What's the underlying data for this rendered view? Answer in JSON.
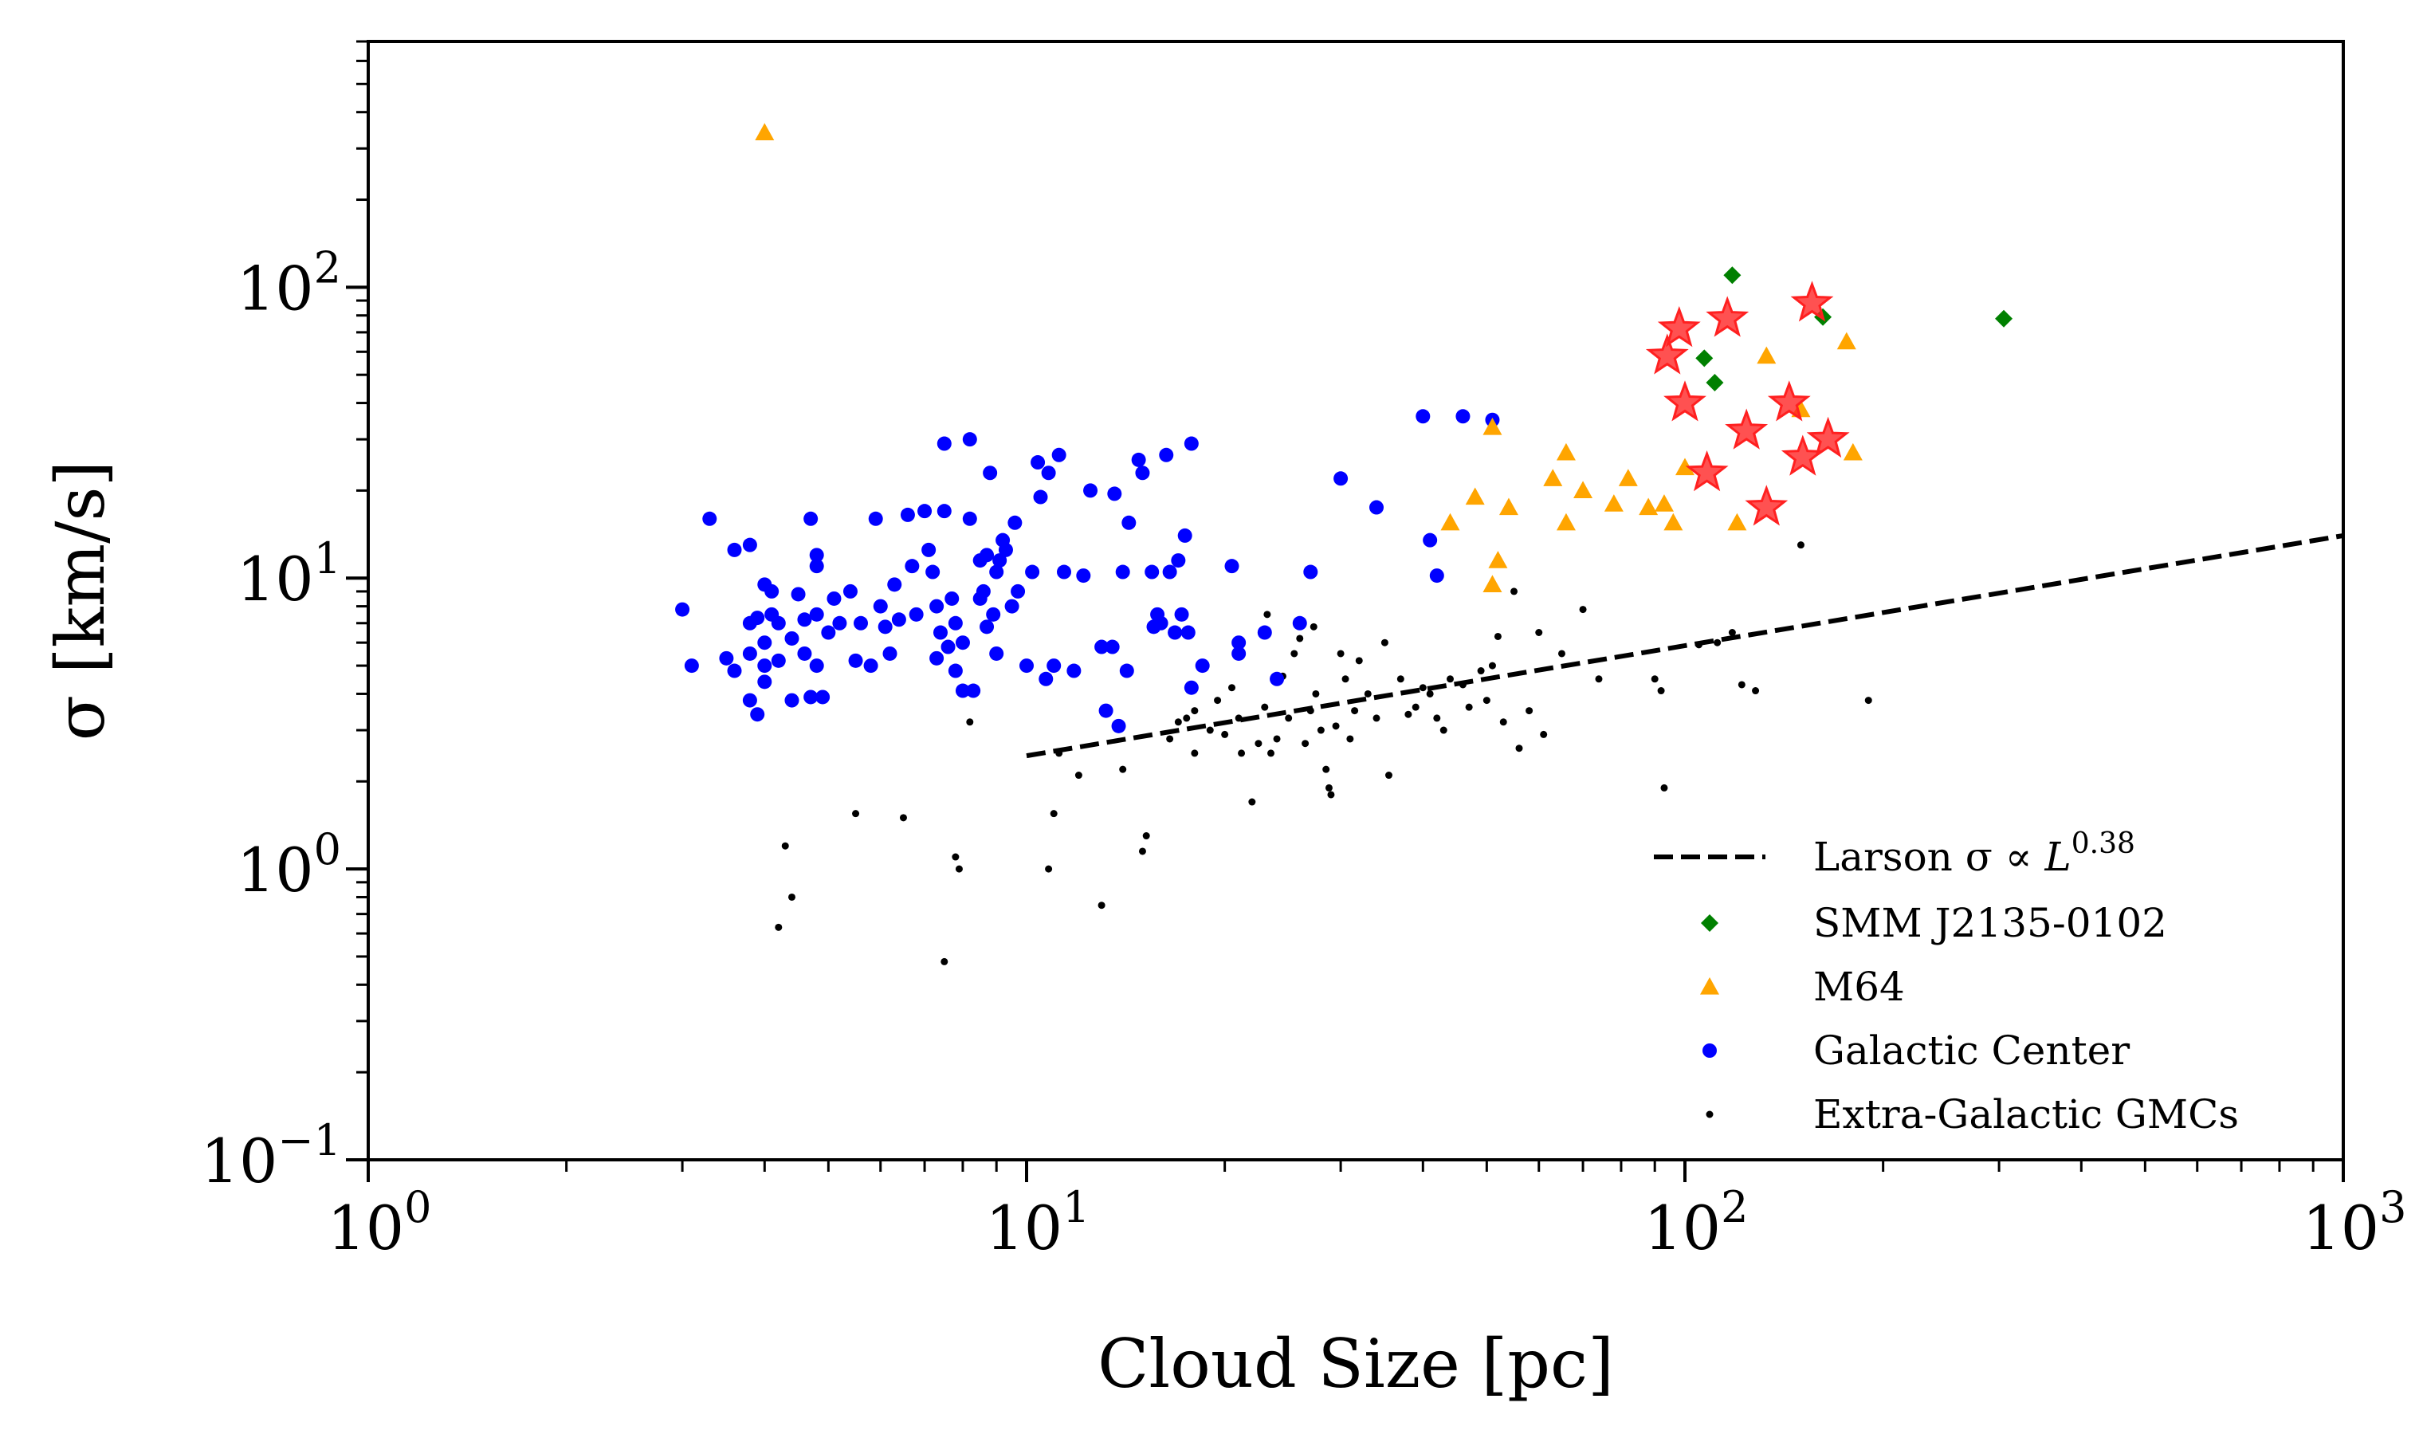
{
  "chart_data": {
    "type": "scatter",
    "title": "",
    "xlabel": "Cloud Size [pc]",
    "ylabel": "σ [km/s]",
    "xscale": "log",
    "yscale": "log",
    "xlim": [
      1,
      1000
    ],
    "ylim": [
      0.1,
      700
    ],
    "grid": false,
    "legend_position": "lower-right",
    "x_ticks": [
      {
        "value": 1,
        "base": "10",
        "exp": "0"
      },
      {
        "value": 10,
        "base": "10",
        "exp": "1"
      },
      {
        "value": 100,
        "base": "10",
        "exp": "2"
      },
      {
        "value": 1000,
        "base": "10",
        "exp": "3"
      }
    ],
    "y_ticks": [
      {
        "value": 0.1,
        "base": "10",
        "exp": "−1"
      },
      {
        "value": 1,
        "base": "10",
        "exp": "0"
      },
      {
        "value": 10,
        "base": "10",
        "exp": "1"
      },
      {
        "value": 100,
        "base": "10",
        "exp": "2"
      }
    ],
    "larson_fit": {
      "label_prefix": "Larson σ ∝ ",
      "label_var": "L",
      "label_exp": "0.38",
      "exponent": 0.38,
      "x": [
        10,
        1000
      ],
      "y": [
        2.45,
        14.0
      ],
      "color": "#000000"
    },
    "series": [
      {
        "name": "SMM J2135-0102",
        "marker": "diamond",
        "color": "#008000",
        "points": [
          [
            118,
            110
          ],
          [
            107,
            57
          ],
          [
            111,
            47
          ],
          [
            162,
            79
          ],
          [
            305,
            78
          ]
        ]
      },
      {
        "name": "M64",
        "marker": "triangle",
        "color": "#FFA500",
        "points": [
          [
            4,
            340
          ],
          [
            44,
            15.5
          ],
          [
            48,
            19
          ],
          [
            51,
            9.5
          ],
          [
            52,
            11.5
          ],
          [
            54,
            17.5
          ],
          [
            63,
            22
          ],
          [
            66,
            27
          ],
          [
            66,
            15.5
          ],
          [
            70,
            20
          ],
          [
            78,
            18
          ],
          [
            82,
            22
          ],
          [
            88,
            17.5
          ],
          [
            93,
            18
          ],
          [
            96,
            15.5
          ],
          [
            100,
            24
          ],
          [
            120,
            15.5
          ],
          [
            133,
            58
          ],
          [
            150,
            38
          ],
          [
            176,
            65
          ],
          [
            180,
            27
          ],
          [
            51,
            33
          ]
        ]
      },
      {
        "name": "Galactic Center",
        "marker": "circle",
        "color": "#0000FF",
        "points": [
          [
            3.0,
            7.8
          ],
          [
            3.1,
            5.0
          ],
          [
            3.3,
            16
          ],
          [
            3.5,
            5.3
          ],
          [
            3.6,
            12.5
          ],
          [
            3.6,
            4.8
          ],
          [
            3.8,
            13
          ],
          [
            3.8,
            7.0
          ],
          [
            3.8,
            5.5
          ],
          [
            3.8,
            3.8
          ],
          [
            3.9,
            7.3
          ],
          [
            3.9,
            3.4
          ],
          [
            4.0,
            9.5
          ],
          [
            4.0,
            6.0
          ],
          [
            4.0,
            5.0
          ],
          [
            4.0,
            4.4
          ],
          [
            4.1,
            9.0
          ],
          [
            4.1,
            7.5
          ],
          [
            4.2,
            7.0
          ],
          [
            4.2,
            5.2
          ],
          [
            4.4,
            3.8
          ],
          [
            4.4,
            6.2
          ],
          [
            4.5,
            8.8
          ],
          [
            4.6,
            7.2
          ],
          [
            4.6,
            5.5
          ],
          [
            4.7,
            16
          ],
          [
            4.7,
            3.9
          ],
          [
            4.8,
            12
          ],
          [
            4.8,
            11
          ],
          [
            4.8,
            7.5
          ],
          [
            4.8,
            5.0
          ],
          [
            4.9,
            3.9
          ],
          [
            5.0,
            6.5
          ],
          [
            5.1,
            8.5
          ],
          [
            5.2,
            7.0
          ],
          [
            5.4,
            9.0
          ],
          [
            5.5,
            5.2
          ],
          [
            5.6,
            7.0
          ],
          [
            5.8,
            5.0
          ],
          [
            5.9,
            16
          ],
          [
            6.0,
            8.0
          ],
          [
            6.1,
            6.8
          ],
          [
            6.2,
            5.5
          ],
          [
            6.3,
            9.5
          ],
          [
            6.4,
            7.2
          ],
          [
            6.6,
            16.5
          ],
          [
            6.7,
            11
          ],
          [
            6.8,
            7.5
          ],
          [
            7.0,
            17
          ],
          [
            7.1,
            12.5
          ],
          [
            7.2,
            10.5
          ],
          [
            7.3,
            8.0
          ],
          [
            7.3,
            5.3
          ],
          [
            7.4,
            6.5
          ],
          [
            7.5,
            29
          ],
          [
            7.5,
            17
          ],
          [
            7.6,
            5.8
          ],
          [
            7.7,
            8.5
          ],
          [
            7.8,
            4.8
          ],
          [
            7.8,
            7.0
          ],
          [
            8.0,
            6.0
          ],
          [
            8.0,
            4.1
          ],
          [
            8.2,
            30
          ],
          [
            8.2,
            16
          ],
          [
            8.3,
            4.1
          ],
          [
            8.5,
            8.5
          ],
          [
            8.5,
            11.5
          ],
          [
            8.6,
            9.0
          ],
          [
            8.7,
            12
          ],
          [
            8.7,
            6.8
          ],
          [
            8.8,
            23
          ],
          [
            8.9,
            7.5
          ],
          [
            9.0,
            5.5
          ],
          [
            9.0,
            10.5
          ],
          [
            9.1,
            11.5
          ],
          [
            9.2,
            13.5
          ],
          [
            9.3,
            12.5
          ],
          [
            9.5,
            8.0
          ],
          [
            9.6,
            15.5
          ],
          [
            9.7,
            9.0
          ],
          [
            10.0,
            5.0
          ],
          [
            10.2,
            10.5
          ],
          [
            10.4,
            25
          ],
          [
            10.5,
            19
          ],
          [
            10.7,
            4.5
          ],
          [
            10.8,
            23
          ],
          [
            11.0,
            5.0
          ],
          [
            11.2,
            26.5
          ],
          [
            11.4,
            10.5
          ],
          [
            11.8,
            4.8
          ],
          [
            12.2,
            10.2
          ],
          [
            12.5,
            20
          ],
          [
            13.0,
            5.8
          ],
          [
            13.2,
            3.5
          ],
          [
            13.5,
            5.8
          ],
          [
            13.6,
            19.5
          ],
          [
            13.8,
            3.1
          ],
          [
            14.0,
            10.5
          ],
          [
            14.2,
            4.8
          ],
          [
            14.3,
            15.5
          ],
          [
            14.8,
            25.5
          ],
          [
            15.0,
            23
          ],
          [
            15.5,
            10.5
          ],
          [
            15.6,
            6.8
          ],
          [
            15.8,
            7.5
          ],
          [
            16.0,
            7.0
          ],
          [
            16.3,
            26.5
          ],
          [
            16.5,
            10.5
          ],
          [
            16.8,
            6.5
          ],
          [
            17.0,
            11.5
          ],
          [
            17.2,
            7.5
          ],
          [
            17.4,
            14
          ],
          [
            17.6,
            6.5
          ],
          [
            17.8,
            29
          ],
          [
            17.8,
            4.2
          ],
          [
            18.5,
            5.0
          ],
          [
            20.5,
            11
          ],
          [
            21,
            6.0
          ],
          [
            23,
            6.5
          ],
          [
            24,
            4.5
          ],
          [
            27,
            10.5
          ],
          [
            30,
            22
          ],
          [
            34,
            17.5
          ],
          [
            40,
            36
          ],
          [
            41,
            13.5
          ],
          [
            42,
            10.2
          ],
          [
            46,
            36
          ],
          [
            51,
            35
          ],
          [
            21,
            5.5
          ],
          [
            26,
            7.0
          ]
        ]
      },
      {
        "name": "Extra-Galactic GMCs",
        "marker": "dot",
        "color": "#000000",
        "points": [
          [
            4.2,
            0.63
          ],
          [
            4.3,
            1.2
          ],
          [
            4.4,
            0.8
          ],
          [
            5.5,
            1.55
          ],
          [
            6.5,
            1.5
          ],
          [
            7.5,
            0.48
          ],
          [
            7.8,
            1.1
          ],
          [
            7.9,
            1.0
          ],
          [
            8.2,
            3.2
          ],
          [
            10.8,
            1.0
          ],
          [
            11,
            1.55
          ],
          [
            11.2,
            2.5
          ],
          [
            12,
            2.1
          ],
          [
            13,
            0.75
          ],
          [
            14,
            2.2
          ],
          [
            15,
            1.15
          ],
          [
            15.2,
            1.3
          ],
          [
            16.5,
            2.8
          ],
          [
            17,
            3.2
          ],
          [
            17.5,
            3.3
          ],
          [
            18,
            3.5
          ],
          [
            18,
            2.5
          ],
          [
            19,
            3.0
          ],
          [
            19.5,
            3.8
          ],
          [
            20,
            2.9
          ],
          [
            20.5,
            4.2
          ],
          [
            21,
            3.3
          ],
          [
            21.2,
            2.5
          ],
          [
            22,
            1.7
          ],
          [
            22.5,
            2.7
          ],
          [
            23,
            3.6
          ],
          [
            23.2,
            7.5
          ],
          [
            23.5,
            2.5
          ],
          [
            24,
            2.8
          ],
          [
            24.5,
            4.6
          ],
          [
            25,
            3.3
          ],
          [
            25.5,
            5.5
          ],
          [
            26,
            6.2
          ],
          [
            26.5,
            2.7
          ],
          [
            27,
            3.5
          ],
          [
            27.3,
            6.8
          ],
          [
            27.5,
            4.0
          ],
          [
            28,
            3.0
          ],
          [
            28.5,
            2.2
          ],
          [
            28.8,
            1.9
          ],
          [
            29,
            1.8
          ],
          [
            29.5,
            3.1
          ],
          [
            30,
            5.5
          ],
          [
            30.5,
            4.5
          ],
          [
            31,
            2.8
          ],
          [
            31.5,
            3.5
          ],
          [
            32,
            5.2
          ],
          [
            33,
            4.0
          ],
          [
            34,
            3.3
          ],
          [
            35,
            6.0
          ],
          [
            35.5,
            2.1
          ],
          [
            37,
            4.5
          ],
          [
            39,
            3.6
          ],
          [
            40,
            4.2
          ],
          [
            41,
            4.0
          ],
          [
            42,
            3.3
          ],
          [
            43,
            3.0
          ],
          [
            44,
            4.5
          ],
          [
            46,
            4.3
          ],
          [
            47,
            3.6
          ],
          [
            50,
            3.8
          ],
          [
            51,
            5.0
          ],
          [
            52,
            6.3
          ],
          [
            53,
            3.2
          ],
          [
            55,
            9.0
          ],
          [
            56,
            2.6
          ],
          [
            58,
            3.5
          ],
          [
            60,
            6.5
          ],
          [
            61,
            2.9
          ],
          [
            65,
            5.5
          ],
          [
            70,
            7.8
          ],
          [
            74,
            4.5
          ],
          [
            90,
            4.5
          ],
          [
            92,
            4.1
          ],
          [
            93,
            1.9
          ],
          [
            105,
            5.9
          ],
          [
            112,
            6.0
          ],
          [
            118,
            6.5
          ],
          [
            122,
            4.3
          ],
          [
            128,
            4.1
          ],
          [
            150,
            13
          ],
          [
            190,
            3.8
          ],
          [
            49,
            4.8
          ],
          [
            38,
            3.4
          ]
        ]
      },
      {
        "name": "",
        "marker": "star",
        "color": "#FF2020",
        "points": [
          [
            94,
            58
          ],
          [
            98,
            72
          ],
          [
            100,
            40
          ],
          [
            108,
            23
          ],
          [
            116,
            78
          ],
          [
            124,
            32
          ],
          [
            133,
            17.5
          ],
          [
            144,
            40
          ],
          [
            151,
            26
          ],
          [
            156,
            88
          ],
          [
            165,
            30
          ]
        ]
      }
    ]
  }
}
